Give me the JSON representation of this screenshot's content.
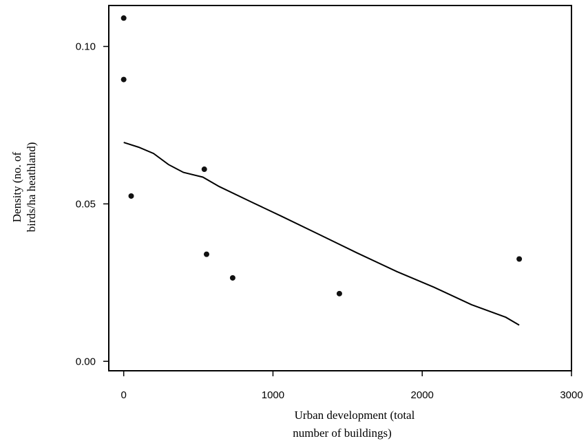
{
  "chart_data": {
    "type": "scatter",
    "xlabel": [
      "Urban development (total",
      "number of buildings)"
    ],
    "ylabel": [
      "Density (no. of",
      "birds/ha heathland)"
    ],
    "xlim": [
      -100,
      3000
    ],
    "ylim": [
      -0.003,
      0.113
    ],
    "xticks": [
      0,
      1000,
      2000,
      3000
    ],
    "xtick_labels": [
      "0",
      "1000",
      "2000",
      "3000"
    ],
    "yticks": [
      0.0,
      0.05,
      0.1
    ],
    "ytick_labels": [
      "0.00",
      "0.05",
      "0.10"
    ],
    "grid": false,
    "series": [
      {
        "kind": "points",
        "x": [
          0,
          0,
          50,
          540,
          555,
          730,
          1445,
          2650
        ],
        "y": [
          0.109,
          0.0895,
          0.0525,
          0.061,
          0.034,
          0.0265,
          0.0215,
          0.0325
        ]
      },
      {
        "kind": "fitted-line",
        "x": [
          0,
          100,
          200,
          300,
          400,
          530,
          640,
          860,
          1060,
          1300,
          1560,
          1830,
          2080,
          2330,
          2560,
          2650
        ],
        "y": [
          0.0695,
          0.068,
          0.066,
          0.0625,
          0.06,
          0.0585,
          0.0555,
          0.0505,
          0.046,
          0.0405,
          0.0345,
          0.0285,
          0.0235,
          0.018,
          0.014,
          0.0115
        ]
      }
    ],
    "point_color": "#111111",
    "line_color": "#000000"
  }
}
